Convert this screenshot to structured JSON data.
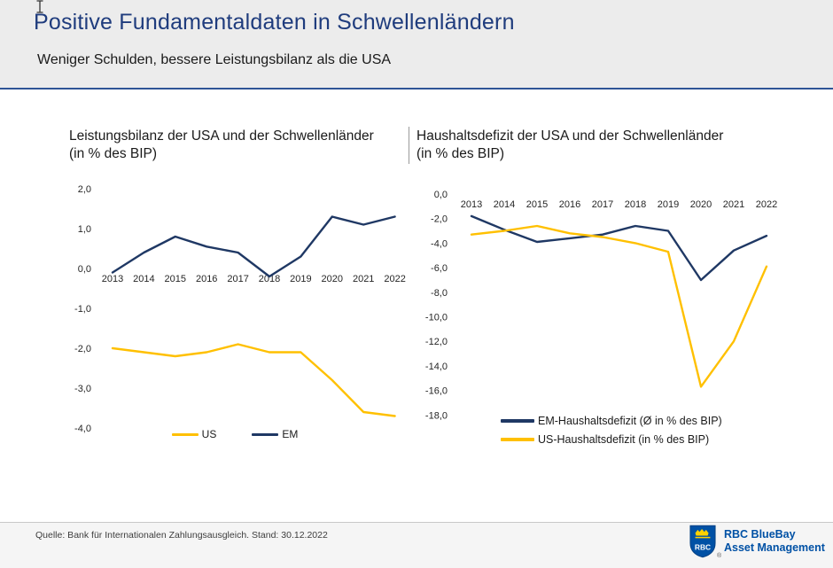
{
  "header": {
    "title": "Positive Fundamentaldaten in Schwellenländern",
    "subtitle": "Weniger Schulden, bessere Leistungsbilanz als die USA"
  },
  "colors": {
    "title_blue": "#1f3c7d",
    "divider_blue": "#2f5496",
    "navy_line": "#1f3864",
    "gold_line": "#ffc000",
    "rbc_blue": "#0051a5"
  },
  "chart_data": [
    {
      "type": "line",
      "title_line1": "Leistungsbilanz der USA und der Schwellenländer",
      "title_line2": "(in % des BIP)",
      "categories": [
        "2013",
        "2014",
        "2015",
        "2016",
        "2017",
        "2018",
        "2019",
        "2020",
        "2021",
        "2022"
      ],
      "series": [
        {
          "name": "US",
          "color": "#ffc000",
          "values": [
            -2.0,
            -2.1,
            -2.2,
            -2.1,
            -1.9,
            -2.1,
            -2.1,
            -2.8,
            -3.6,
            -3.7
          ]
        },
        {
          "name": "EM",
          "color": "#1f3864",
          "values": [
            -0.1,
            0.4,
            0.8,
            0.55,
            0.4,
            -0.2,
            0.3,
            1.3,
            1.1,
            1.3
          ]
        }
      ],
      "ylim": [
        -4.0,
        2.0
      ],
      "ytick_step": 1.0,
      "grid": false,
      "legend_position": "bottom"
    },
    {
      "type": "line",
      "title_line1": "Haushaltsdefizit der USA und der Schwellenländer",
      "title_line2": "(in % des BIP)",
      "categories": [
        "2013",
        "2014",
        "2015",
        "2016",
        "2017",
        "2018",
        "2019",
        "2020",
        "2021",
        "2022"
      ],
      "series": [
        {
          "name": "EM-Haushaltsdefizit (Ø in % des BIP)",
          "color": "#1f3864",
          "values": [
            -1.8,
            -2.9,
            -3.9,
            -3.6,
            -3.3,
            -2.6,
            -3.0,
            -7.0,
            -4.6,
            -3.4
          ]
        },
        {
          "name": "US-Haushaltsdefizit (in % des BIP)",
          "color": "#ffc000",
          "values": [
            -3.3,
            -3.0,
            -2.6,
            -3.2,
            -3.5,
            -4.0,
            -4.7,
            -15.7,
            -12.0,
            -5.9
          ]
        }
      ],
      "ylim": [
        -18.0,
        0.0
      ],
      "ytick_step": 2.0,
      "grid": false,
      "legend_position": "bottom"
    }
  ],
  "footer": {
    "source": "Quelle: Bank für Internationalen Zahlungsausgleich. Stand: 30.12.2022",
    "logo": {
      "shield_label": "RBC",
      "line1": "RBC BlueBay",
      "line2": "Asset Management",
      "registered": "®"
    }
  }
}
